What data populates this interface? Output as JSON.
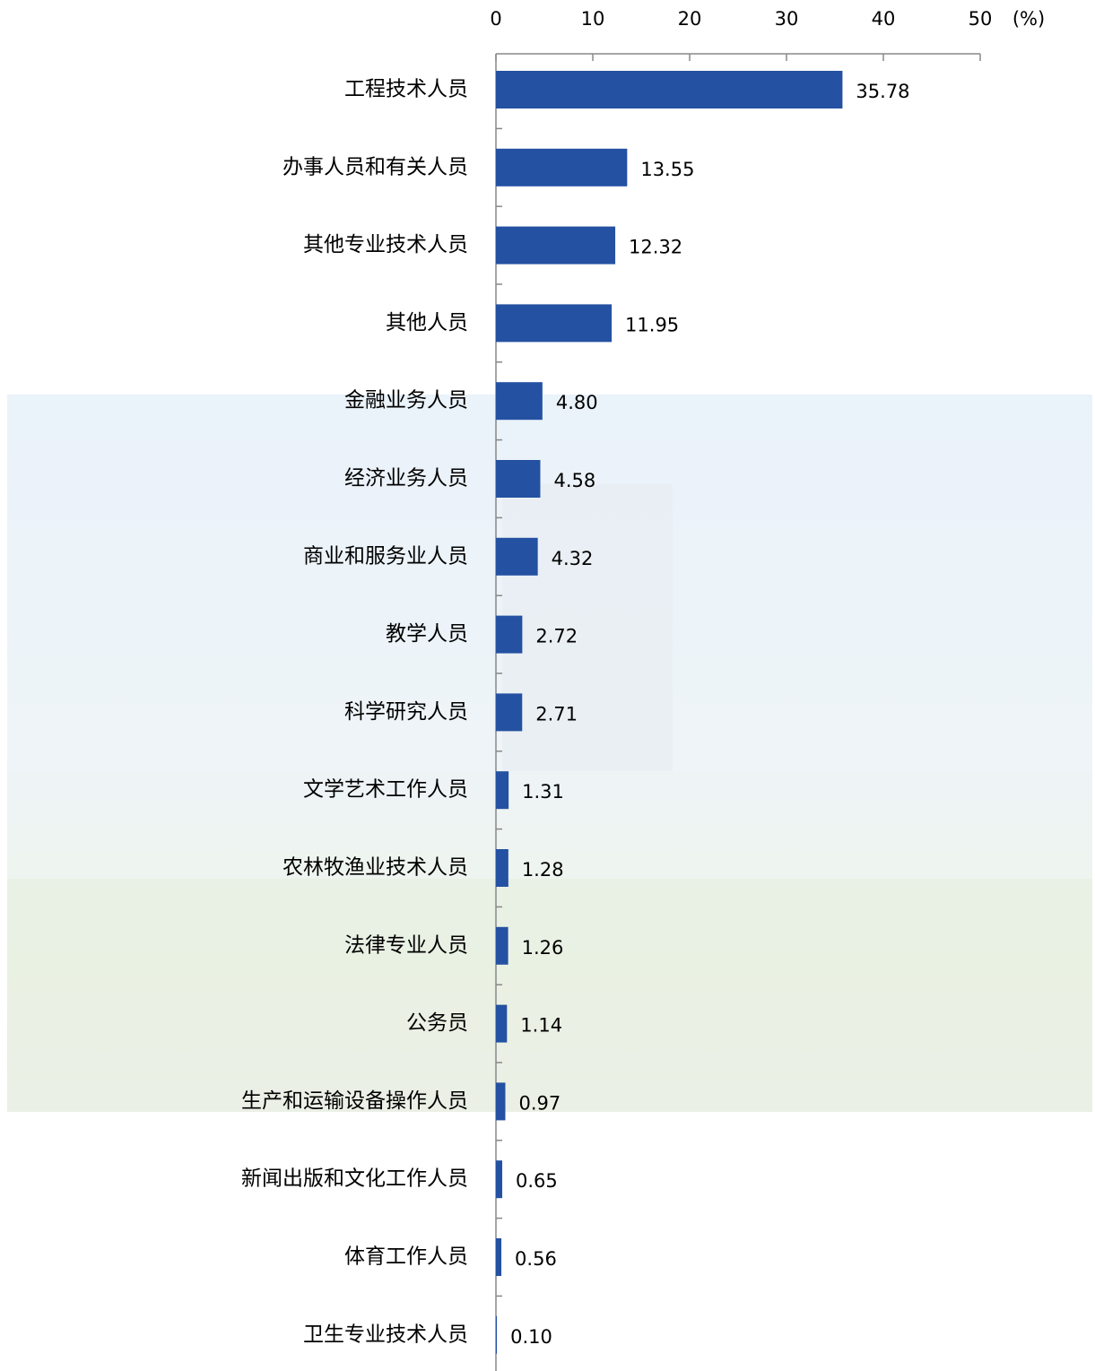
{
  "chart_data": {
    "type": "bar",
    "orientation": "horizontal",
    "unit_label": "(%)",
    "categories": [
      "工程技术人员",
      "办事人员和有关人员",
      "其他专业技术人员",
      "其他人员",
      "金融业务人员",
      "经济业务人员",
      "商业和服务业人员",
      "教学人员",
      "科学研究人员",
      "文学艺术工作人员",
      "农林牧渔业技术人员",
      "法律专业人员",
      "公务员",
      "生产和运输设备操作人员",
      "新闻出版和文化工作人员",
      "体育工作人员",
      "卫生专业技术人员"
    ],
    "values": [
      35.78,
      13.55,
      12.32,
      11.95,
      4.8,
      4.58,
      4.32,
      2.72,
      2.71,
      1.31,
      1.28,
      1.26,
      1.14,
      0.97,
      0.65,
      0.56,
      0.1
    ],
    "value_labels": [
      "35.78",
      "13.55",
      "12.32",
      "11.95",
      "4.80",
      "4.58",
      "4.32",
      "2.72",
      "2.71",
      "1.31",
      "1.28",
      "1.26",
      "1.14",
      "0.97",
      "0.65",
      "0.56",
      "0.10"
    ],
    "color": "#2451a1",
    "xlim": [
      0,
      50
    ],
    "xticks": [
      0,
      10,
      20,
      30,
      40,
      50
    ]
  }
}
